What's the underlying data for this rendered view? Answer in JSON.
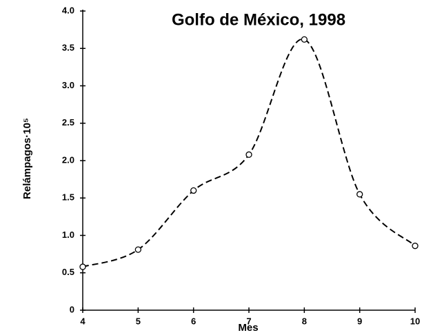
{
  "chart_data": {
    "type": "line",
    "title": "Golfo de México, 1998",
    "x_label": "Mes",
    "y_label": "Relámpagos·10⁵",
    "x": [
      4,
      5,
      6,
      7,
      8,
      9,
      10
    ],
    "values": [
      0.58,
      0.81,
      1.6,
      2.08,
      3.62,
      1.55,
      0.86
    ],
    "color": "#000000",
    "dashed": true,
    "smooth": true,
    "markers": true,
    "xlim": [
      4,
      10
    ],
    "xticks": [
      4,
      5,
      6,
      7,
      8,
      9,
      10
    ],
    "ylim": [
      0,
      4
    ],
    "yticks": [
      0,
      0.5,
      {
        "value": 1,
        "label": "1.0"
      },
      1.5,
      {
        "value": 2,
        "label": "2.0"
      },
      2.5,
      {
        "value": 3,
        "label": "3.0"
      },
      3.5,
      {
        "value": 4,
        "label": "4.0"
      }
    ],
    "grid": false
  }
}
